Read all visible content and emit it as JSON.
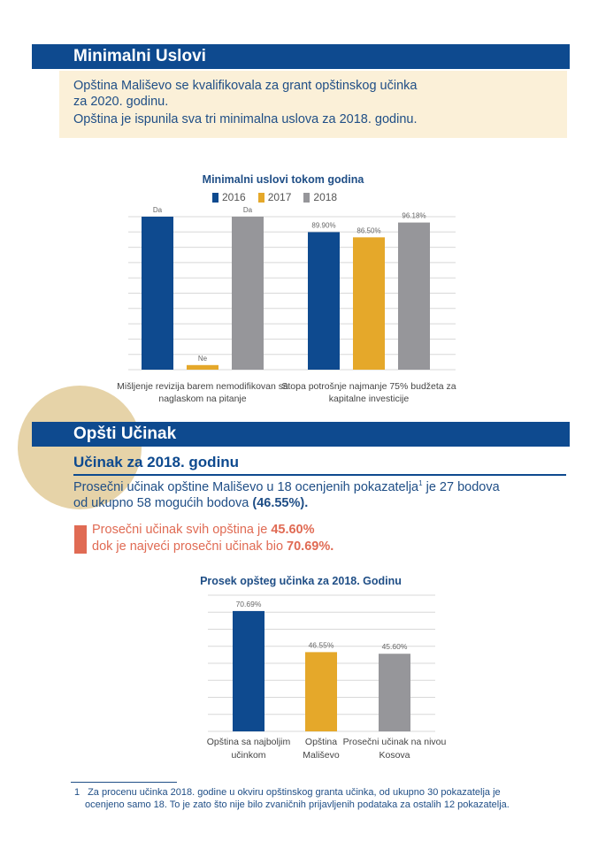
{
  "section1": {
    "title": "Minimalni Uslovi",
    "intro_line1": "Opština Mališevo se kvalifikovala za grant opštinskog učinka",
    "intro_line2": "za 2020. godinu.",
    "intro_line3": "Opština je ispunila sva tri minimalna uslova za 2018. godinu."
  },
  "section2": {
    "title": "Opšti Učinak",
    "subtitle": "Učinak za 2018. godinu",
    "text_a1": "Prosečni učinak opštine Mališevo u 18 ocenjenih pokazatelja",
    "text_a1_sup": "1",
    "text_a1_end": " je 27 bodova",
    "text_a2": "od ukupno 58 mogućih bodova ",
    "text_a2_bold": "(46.55%).",
    "text_b1": "Prosečni učinak svih opština je ",
    "text_b1_bold": "45.60%",
    "text_b2": "dok je najveći prosečni učinak bio ",
    "text_b2_bold": "70.69%."
  },
  "footnote": {
    "number": "1",
    "line1": "Za procenu učinka 2018. godine u okviru opštinskog granta učinka, od ukupno 30 pokazatelja je",
    "line2": "ocenjeno samo 18. To je zato što nije bilo zvaničnih prijavljenih podataka za ostalih 12 pokazatelja."
  },
  "colors": {
    "blue": "#0e4a8f",
    "gold": "#e5a82a",
    "gray": "#96969a",
    "orange": "#e06b54"
  },
  "chart_data": [
    {
      "type": "bar",
      "title": "Minimalni uslovi tokom godina",
      "legend_position": "top",
      "series": [
        {
          "name": "2016",
          "color": "#0e4a8f",
          "values": [
            100,
            89.9
          ],
          "labels": [
            "Da",
            "89.90%"
          ]
        },
        {
          "name": "2017",
          "color": "#e5a82a",
          "values": [
            3,
            86.5
          ],
          "labels": [
            "Ne",
            "86.50%"
          ]
        },
        {
          "name": "2018",
          "color": "#96969a",
          "values": [
            100,
            96.18
          ],
          "labels": [
            "Da",
            "96.18%"
          ]
        }
      ],
      "categories": [
        [
          "Mišljenje revizija barem nemodifikovan sa",
          "naglaskom na pitanje"
        ],
        [
          "Stopa potrošnje najmanje 75% budžeta za",
          "kapitalne investicije"
        ]
      ],
      "ylim": [
        0,
        100
      ],
      "grid": true
    },
    {
      "type": "bar",
      "title": "Prosek opšteg učinka za 2018. Godinu",
      "categories": [
        [
          "Opština sa najboljim",
          "učinkom"
        ],
        [
          "Opština",
          "Mališevo"
        ],
        [
          "Prosečni učinak na nivou",
          "Kosova"
        ]
      ],
      "values": [
        70.69,
        46.55,
        45.6
      ],
      "labels": [
        "70.69%",
        "46.55%",
        "45.60%"
      ],
      "colors": [
        "#0e4a8f",
        "#e5a82a",
        "#96969a"
      ],
      "ylim": [
        0,
        80
      ],
      "grid": true
    }
  ]
}
